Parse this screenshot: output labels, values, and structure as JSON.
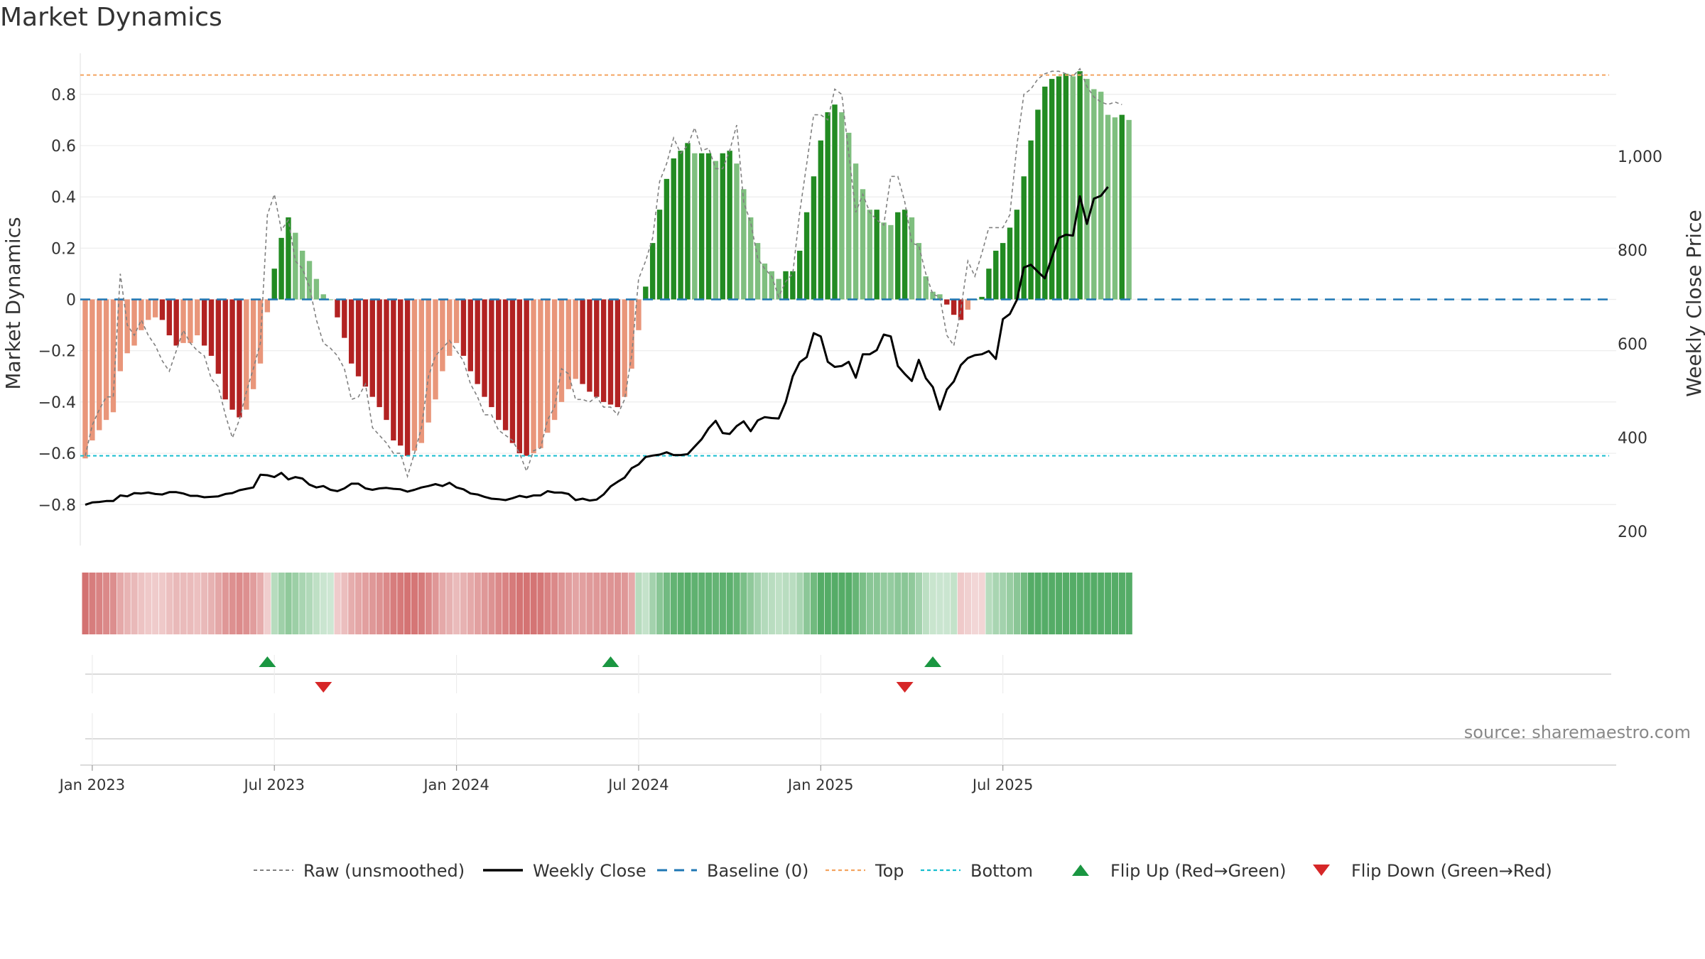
{
  "chart_data": {
    "type": "bar",
    "title": "Market Dynamics",
    "ylabel_left": "Market Dynamics",
    "ylabel_right": "Weekly Close Price",
    "ylim_left": [
      -0.96,
      0.96
    ],
    "ylim_right": [
      170,
      1220
    ],
    "yticks_left": [
      -0.8,
      -0.6,
      -0.4,
      -0.2,
      0,
      0.2,
      0.4,
      0.6,
      0.8
    ],
    "yticks_left_labels": [
      "−0.8",
      "−0.6",
      "−0.4",
      "−0.2",
      "0",
      "0.2",
      "0.4",
      "0.6",
      "0.8"
    ],
    "yticks_right": [
      200,
      400,
      600,
      800,
      1000
    ],
    "yticks_right_labels": [
      "200",
      "400",
      "600",
      "800",
      "1,000"
    ],
    "top_level": 0.875,
    "bottom_level": -0.61,
    "date_ticks": [
      {
        "label": "Jan 2023",
        "week": 0
      },
      {
        "label": "Jul 2023",
        "week": 26
      },
      {
        "label": "Jan 2024",
        "week": 52
      },
      {
        "label": "Jul 2024",
        "week": 78
      },
      {
        "label": "Jan 2025",
        "week": 104
      },
      {
        "label": "Jul 2025",
        "week": 130
      }
    ],
    "first_week_offset": -1,
    "smoothed": [
      -0.62,
      -0.55,
      -0.51,
      -0.47,
      -0.44,
      -0.28,
      -0.21,
      -0.18,
      -0.12,
      -0.08,
      -0.07,
      -0.08,
      -0.14,
      -0.18,
      -0.17,
      -0.17,
      -0.14,
      -0.18,
      -0.22,
      -0.29,
      -0.39,
      -0.43,
      -0.46,
      -0.43,
      -0.35,
      -0.25,
      -0.05,
      0.12,
      0.24,
      0.32,
      0.26,
      0.19,
      0.15,
      0.08,
      0.02,
      0,
      -0.07,
      -0.15,
      -0.25,
      -0.3,
      -0.34,
      -0.38,
      -0.42,
      -0.47,
      -0.55,
      -0.57,
      -0.61,
      -0.59,
      -0.56,
      -0.48,
      -0.39,
      -0.28,
      -0.22,
      -0.17,
      -0.22,
      -0.28,
      -0.33,
      -0.38,
      -0.42,
      -0.47,
      -0.51,
      -0.56,
      -0.6,
      -0.61,
      -0.6,
      -0.58,
      -0.52,
      -0.47,
      -0.4,
      -0.35,
      -0.31,
      -0.33,
      -0.36,
      -0.38,
      -0.4,
      -0.41,
      -0.42,
      -0.38,
      -0.27,
      -0.12,
      0.05,
      0.22,
      0.35,
      0.47,
      0.55,
      0.58,
      0.61,
      0.57,
      0.57,
      0.57,
      0.54,
      0.57,
      0.58,
      0.53,
      0.43,
      0.32,
      0.22,
      0.14,
      0.11,
      0.08,
      0.11,
      0.11,
      0.19,
      0.34,
      0.48,
      0.62,
      0.73,
      0.76,
      0.73,
      0.65,
      0.53,
      0.43,
      0.35,
      0.35,
      0.3,
      0.29,
      0.34,
      0.35,
      0.32,
      0.22,
      0.09,
      0.03,
      0.02,
      -0.02,
      -0.06,
      -0.08,
      -0.04,
      0.0,
      0.01,
      0.12,
      0.19,
      0.22,
      0.28,
      0.35,
      0.48,
      0.62,
      0.74,
      0.83,
      0.86,
      0.87,
      0.88,
      0.87,
      0.89,
      0.86,
      0.82,
      0.81,
      0.72,
      0.71,
      0.72,
      0.7
    ],
    "raw": [
      -0.61,
      -0.49,
      -0.43,
      -0.38,
      -0.38,
      0.1,
      -0.1,
      -0.14,
      -0.08,
      -0.14,
      -0.18,
      -0.24,
      -0.28,
      -0.2,
      -0.12,
      -0.17,
      -0.2,
      -0.22,
      -0.31,
      -0.34,
      -0.45,
      -0.54,
      -0.47,
      -0.36,
      -0.27,
      -0.17,
      0.33,
      0.41,
      0.27,
      0.31,
      0.15,
      0.12,
      0.05,
      -0.08,
      -0.17,
      -0.19,
      -0.22,
      -0.27,
      -0.39,
      -0.38,
      -0.33,
      -0.5,
      -0.53,
      -0.56,
      -0.6,
      -0.6,
      -0.69,
      -0.6,
      -0.5,
      -0.3,
      -0.22,
      -0.19,
      -0.16,
      -0.2,
      -0.24,
      -0.33,
      -0.38,
      -0.45,
      -0.45,
      -0.51,
      -0.53,
      -0.55,
      -0.6,
      -0.67,
      -0.59,
      -0.58,
      -0.47,
      -0.42,
      -0.27,
      -0.29,
      -0.39,
      -0.39,
      -0.4,
      -0.38,
      -0.42,
      -0.42,
      -0.45,
      -0.39,
      -0.22,
      0.08,
      0.15,
      0.24,
      0.46,
      0.53,
      0.63,
      0.57,
      0.6,
      0.67,
      0.58,
      0.59,
      0.51,
      0.51,
      0.58,
      0.68,
      0.38,
      0.3,
      0.16,
      0.12,
      0.09,
      0.01,
      0.07,
      0.1,
      0.34,
      0.53,
      0.72,
      0.72,
      0.7,
      0.82,
      0.8,
      0.57,
      0.34,
      0.41,
      0.34,
      0.31,
      0.29,
      0.48,
      0.48,
      0.38,
      0.22,
      0.21,
      0.1,
      0.02,
      0.01,
      -0.14,
      -0.18,
      -0.04,
      0.15,
      0.09,
      0.18,
      0.28,
      0.28,
      0.28,
      0.33,
      0.6,
      0.8,
      0.82,
      0.86,
      0.88,
      0.89,
      0.89,
      0.88,
      0.87,
      0.9,
      0.83,
      0.79,
      0.77,
      0.76,
      0.77,
      0.76
    ],
    "close": [
      257,
      262,
      263,
      265,
      265,
      277,
      275,
      282,
      281,
      283,
      280,
      279,
      284,
      284,
      281,
      276,
      276,
      273,
      274,
      275,
      280,
      282,
      288,
      291,
      294,
      321,
      320,
      316,
      325,
      311,
      316,
      313,
      300,
      294,
      297,
      289,
      286,
      292,
      302,
      302,
      292,
      289,
      292,
      293,
      291,
      290,
      285,
      289,
      294,
      297,
      301,
      297,
      304,
      294,
      290,
      281,
      279,
      274,
      270,
      269,
      267,
      271,
      276,
      273,
      277,
      277,
      286,
      283,
      283,
      280,
      267,
      270,
      266,
      268,
      279,
      296,
      306,
      315,
      335,
      343,
      359,
      362,
      364,
      369,
      363,
      363,
      365,
      381,
      397,
      420,
      436,
      410,
      408,
      425,
      435,
      414,
      437,
      444,
      442,
      441,
      476,
      531,
      561,
      572,
      623,
      616,
      562,
      551,
      553,
      562,
      528,
      578,
      578,
      587,
      620,
      616,
      553,
      536,
      521,
      566,
      527,
      508,
      460,
      503,
      520,
      555,
      570,
      576,
      578,
      585,
      568,
      653,
      664,
      694,
      763,
      769,
      754,
      740,
      785,
      826,
      833,
      831,
      915,
      856,
      910,
      916,
      935
    ],
    "phases": [
      "red",
      "red",
      "red",
      "red",
      "red",
      "red",
      "red",
      "red",
      "red",
      "red",
      "red",
      "red",
      "red",
      "red",
      "red",
      "red",
      "red",
      "red",
      "red",
      "red",
      "red",
      "red",
      "red",
      "red",
      "red",
      "red",
      "red",
      "green",
      "green",
      "green",
      "green",
      "green",
      "green",
      "green",
      "green",
      "green",
      "red",
      "red",
      "red",
      "red",
      "red",
      "red",
      "red",
      "red",
      "red",
      "red",
      "red",
      "red",
      "red",
      "red",
      "red",
      "red",
      "red",
      "red",
      "red",
      "red",
      "red",
      "red",
      "red",
      "red",
      "red",
      "red",
      "red",
      "red",
      "red",
      "red",
      "red",
      "red",
      "red",
      "red",
      "red",
      "red",
      "red",
      "red",
      "red",
      "red",
      "red",
      "red",
      "red",
      "green",
      "green",
      "green",
      "green",
      "green",
      "green",
      "green",
      "green",
      "green",
      "green",
      "green",
      "green",
      "green",
      "green",
      "green",
      "green",
      "green",
      "green",
      "green",
      "green",
      "green",
      "green",
      "green",
      "green",
      "green",
      "green",
      "green",
      "green",
      "green",
      "green",
      "green",
      "green",
      "green",
      "green",
      "green",
      "green",
      "green",
      "green",
      "green",
      "green",
      "green",
      "green",
      "green",
      "green",
      "green",
      "green",
      "red",
      "red",
      "red",
      "red",
      "green",
      "green",
      "green",
      "green",
      "green",
      "green",
      "green",
      "green",
      "green",
      "green",
      "green",
      "green",
      "green",
      "green",
      "green",
      "green",
      "green",
      "green",
      "green",
      "green",
      "green"
    ],
    "flips": [
      {
        "week": 26,
        "direction": "up"
      },
      {
        "week": 34,
        "direction": "down"
      },
      {
        "week": 75,
        "direction": "up"
      },
      {
        "week": 117,
        "direction": "down"
      },
      {
        "week": 121,
        "direction": "up"
      }
    ],
    "colors": {
      "red_strong": "#b22222",
      "red_light": "#e9967a",
      "green_strong": "#228b22",
      "green_light": "#7fbf7f",
      "top_line": "#f4a460",
      "bottom_line": "#17becf",
      "baseline": "#1f77b4",
      "close_line": "#000000",
      "raw_line": "#808080",
      "flip_up": "#1a9641",
      "flip_down": "#d62728"
    },
    "source": "source: sharemaestro.com",
    "legend": [
      {
        "key": "raw",
        "label": "Raw (unsmoothed)"
      },
      {
        "key": "close",
        "label": "Weekly Close"
      },
      {
        "key": "baseline",
        "label": "Baseline (0)"
      },
      {
        "key": "top",
        "label": "Top"
      },
      {
        "key": "bottom",
        "label": "Bottom"
      },
      {
        "key": "flip_up",
        "label": "Flip Up (Red→Green)"
      },
      {
        "key": "flip_down",
        "label": "Flip Down (Green→Red)"
      }
    ]
  }
}
